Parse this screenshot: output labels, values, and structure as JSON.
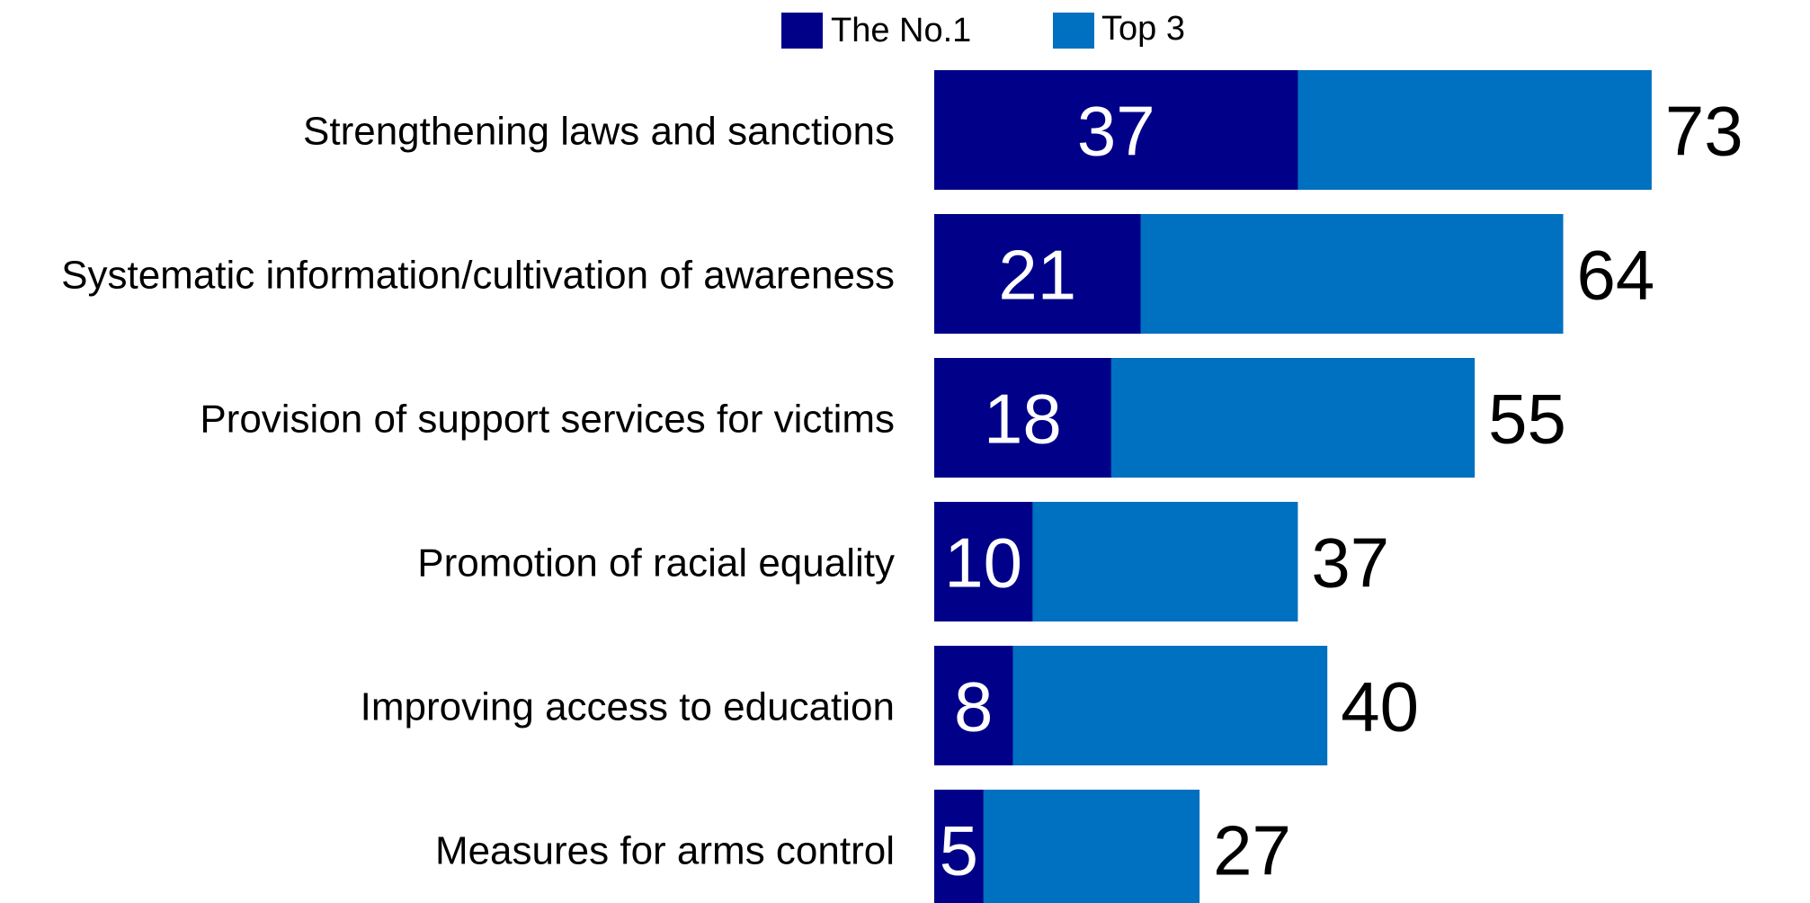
{
  "chart_data": {
    "type": "bar",
    "orientation": "horizontal",
    "stacking": "overlay",
    "categories": [
      "Strengthening laws and sanctions",
      "Systematic information/cultivation of awareness",
      "Provision of support services for victims",
      "Promotion of racial equality",
      "Improving access to education",
      "Measures for arms control"
    ],
    "series": [
      {
        "name": "The No.1",
        "color": "#000088",
        "values": [
          37,
          21,
          18,
          10,
          8,
          5
        ],
        "value_labels": [
          "37",
          "21",
          "18",
          "10",
          "8",
          "5"
        ]
      },
      {
        "name": "Top 3",
        "color": "#0070c0",
        "values": [
          73,
          64,
          55,
          37,
          40,
          27
        ],
        "value_labels": [
          "73",
          "64",
          "55",
          "37",
          "40",
          "27"
        ]
      }
    ],
    "xlim": [
      0,
      73
    ],
    "grid": false,
    "legend": "top-center"
  }
}
